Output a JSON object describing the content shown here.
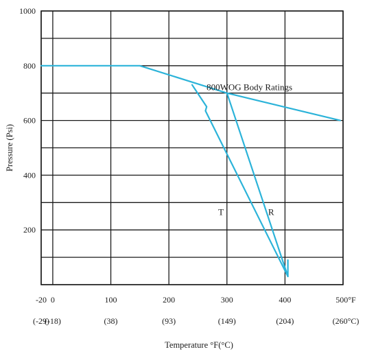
{
  "chart_data": {
    "type": "line",
    "xlabel": "Temperature °F(°C)",
    "ylabel": "Pressure (Psi)",
    "xlim": [
      -20,
      500
    ],
    "ylim": [
      0,
      1000
    ],
    "x_ticks": [
      {
        "value": -20,
        "label": "-20",
        "sub_label": "(-29)"
      },
      {
        "value": 0,
        "label": "0",
        "sub_label": "(-18)"
      },
      {
        "value": 100,
        "label": "100",
        "sub_label": "(38)"
      },
      {
        "value": 200,
        "label": "200",
        "sub_label": "(93)"
      },
      {
        "value": 300,
        "label": "300",
        "sub_label": "(149)"
      },
      {
        "value": 400,
        "label": "400",
        "sub_label": "(204)"
      },
      {
        "value": 500,
        "label": "500°F",
        "sub_label": "(260°C)"
      }
    ],
    "y_ticks": [
      {
        "value": 200,
        "label": "200"
      },
      {
        "value": 400,
        "label": "400"
      },
      {
        "value": 600,
        "label": "600"
      },
      {
        "value": 800,
        "label": "800"
      },
      {
        "value": 1000,
        "label": "1000"
      }
    ],
    "x_grid": [
      -20,
      0,
      100,
      200,
      300,
      400,
      500
    ],
    "y_grid": [
      0,
      100,
      200,
      300,
      400,
      500,
      600,
      700,
      800,
      900,
      1000
    ],
    "grid": true,
    "line_color": "#2bb3d9",
    "series": [
      {
        "name": "800WOG Body Ratings",
        "points": [
          [
            -20,
            800
          ],
          [
            150,
            800
          ],
          [
            300,
            700
          ],
          [
            495,
            600
          ]
        ]
      },
      {
        "name": "T",
        "points": [
          [
            240,
            730
          ],
          [
            265,
            650
          ],
          [
            263,
            635
          ],
          [
            405,
            30
          ]
        ]
      },
      {
        "name": "R",
        "points": [
          [
            300,
            700
          ],
          [
            405,
            30
          ],
          [
            405,
            90
          ]
        ]
      }
    ],
    "annotations": [
      {
        "text": "800WOG Body Ratings",
        "x": 265,
        "y": 710
      },
      {
        "text": "T",
        "x": 285,
        "y": 255
      },
      {
        "text": "R",
        "x": 371,
        "y": 255
      }
    ]
  }
}
